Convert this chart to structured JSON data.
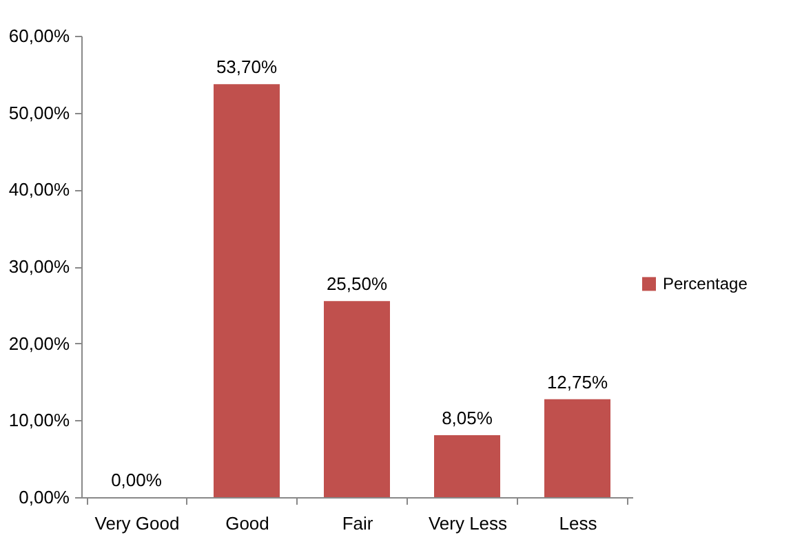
{
  "chart_data": {
    "type": "bar",
    "categories": [
      "Very Good",
      "Good",
      "Fair",
      "Very Less",
      "Less"
    ],
    "series": [
      {
        "name": "Percentage",
        "color": "#c0504d",
        "values": [
          0,
          53.7,
          25.5,
          8.05,
          12.75
        ]
      }
    ],
    "value_labels": [
      "0,00%",
      "53,70%",
      "25,50%",
      "8,05%",
      "12,75%"
    ],
    "ylim": [
      0,
      60
    ],
    "yticks": [
      {
        "value": 0,
        "label": "0,00%"
      },
      {
        "value": 10,
        "label": "10,00%"
      },
      {
        "value": 20,
        "label": "20,00%"
      },
      {
        "value": 30,
        "label": "30,00%"
      },
      {
        "value": 40,
        "label": "40,00%"
      },
      {
        "value": 50,
        "label": "50,00%"
      },
      {
        "value": 60,
        "label": "60,00%"
      }
    ],
    "grid": false,
    "legend": "right"
  }
}
